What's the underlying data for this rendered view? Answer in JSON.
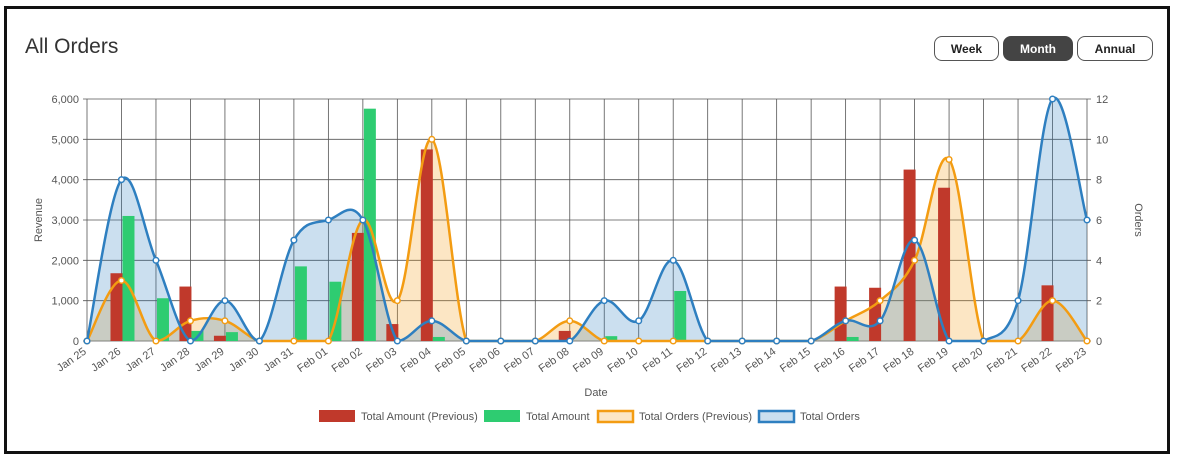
{
  "header": {
    "title": "All Orders"
  },
  "range_buttons": [
    {
      "label": "Week",
      "active": false
    },
    {
      "label": "Month",
      "active": true
    },
    {
      "label": "Annual",
      "active": false
    }
  ],
  "chart_data": {
    "type": "bar",
    "xlabel": "Date",
    "ylabel": "Revenue",
    "y2label": "Orders",
    "ylim": [
      0,
      6000
    ],
    "y2lim": [
      0,
      12
    ],
    "y_ticks": [
      "0",
      "1,000",
      "2,000",
      "3,000",
      "4,000",
      "5,000",
      "6,000"
    ],
    "y2_ticks": [
      "0",
      "2",
      "4",
      "6",
      "8",
      "10",
      "12"
    ],
    "grid": true,
    "legend_position": "bottom",
    "categories": [
      "Jan 25",
      "Jan 26",
      "Jan 27",
      "Jan 28",
      "Jan 29",
      "Jan 30",
      "Jan 31",
      "Feb 01",
      "Feb 02",
      "Feb 03",
      "Feb 04",
      "Feb 05",
      "Feb 06",
      "Feb 07",
      "Feb 08",
      "Feb 09",
      "Feb 10",
      "Feb 11",
      "Feb 12",
      "Feb 13",
      "Feb 14",
      "Feb 15",
      "Feb 16",
      "Feb 17",
      "Feb 18",
      "Feb 19",
      "Feb 20",
      "Feb 21",
      "Feb 22",
      "Feb 23"
    ],
    "series": [
      {
        "name": "Total Amount (Previous)",
        "kind": "bar",
        "axis": "left",
        "color": "#c0392b",
        "values": [
          0,
          1680,
          0,
          1350,
          130,
          0,
          0,
          0,
          2680,
          420,
          4750,
          0,
          0,
          0,
          250,
          0,
          0,
          0,
          0,
          0,
          0,
          0,
          1350,
          1320,
          4250,
          3800,
          0,
          0,
          1380,
          0
        ]
      },
      {
        "name": "Total Amount",
        "kind": "bar",
        "axis": "left",
        "color": "#2ecc71",
        "values": [
          0,
          3100,
          1060,
          250,
          220,
          0,
          1850,
          1470,
          5760,
          0,
          100,
          0,
          0,
          0,
          0,
          120,
          0,
          1240,
          0,
          0,
          0,
          0,
          100,
          0,
          0,
          0,
          0,
          0,
          0,
          0
        ]
      },
      {
        "name": "Total Orders (Previous)",
        "kind": "area",
        "axis": "right",
        "color": "#f39c12",
        "fill": "rgba(243,156,18,0.25)",
        "values": [
          0,
          3,
          0,
          1,
          1,
          0,
          0,
          0,
          6,
          2,
          10,
          0,
          0,
          0,
          1,
          0,
          0,
          0,
          0,
          0,
          0,
          0,
          1,
          2,
          4,
          9,
          0,
          0,
          2,
          0
        ]
      },
      {
        "name": "Total Orders",
        "kind": "area",
        "axis": "right",
        "color": "#2e7fc0",
        "fill": "rgba(46,127,192,0.25)",
        "values": [
          0,
          8,
          4,
          0,
          2,
          0,
          5,
          6,
          6,
          0,
          1,
          0,
          0,
          0,
          0,
          2,
          1,
          4,
          0,
          0,
          0,
          0,
          1,
          1,
          5,
          0,
          0,
          2,
          12,
          6
        ]
      }
    ]
  }
}
